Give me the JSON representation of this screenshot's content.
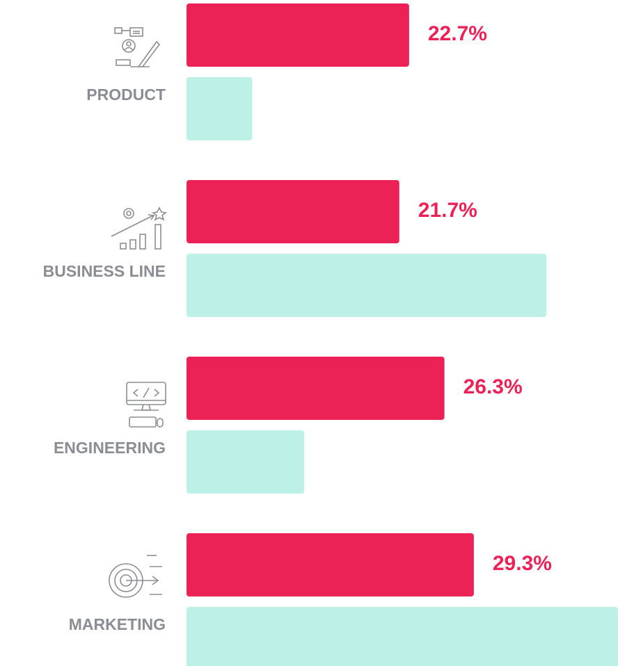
{
  "chart_data": {
    "type": "bar",
    "orientation": "horizontal",
    "categories": [
      "PRODUCT",
      "BUSINESS LINE",
      "ENGINEERING",
      "MARKETING"
    ],
    "series": [
      {
        "color": "#ec2155",
        "values": [
          22.7,
          21.7,
          26.3,
          29.3
        ],
        "value_labels": [
          "22.7%",
          "21.7%",
          "26.3%",
          "29.3%"
        ]
      },
      {
        "color": "#bdf0e6",
        "values": [
          6.7,
          36.7,
          12.0,
          44.0
        ]
      }
    ]
  }
}
